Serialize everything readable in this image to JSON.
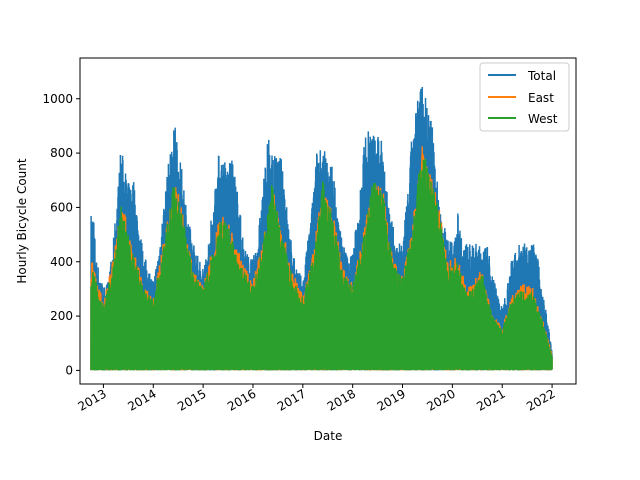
{
  "chart_data": {
    "type": "line",
    "title": "",
    "xlabel": "Date",
    "ylabel": "Hourly Bicycle Count",
    "xlim": [
      2012.53,
      2022.48
    ],
    "ylim": [
      -50,
      1150
    ],
    "x_ticks": [
      2013,
      2014,
      2015,
      2016,
      2017,
      2018,
      2019,
      2020,
      2021,
      2022
    ],
    "x_tick_labels": [
      "2013",
      "2014",
      "2015",
      "2016",
      "2017",
      "2018",
      "2019",
      "2020",
      "2021",
      "2022"
    ],
    "y_ticks": [
      0,
      200,
      400,
      600,
      800,
      1000
    ],
    "y_tick_labels": [
      "0",
      "200",
      "400",
      "600",
      "800",
      "1000"
    ],
    "grid": false,
    "legend": {
      "position": "top-right"
    },
    "series": [
      {
        "name": "Total",
        "color": "#1f77b4",
        "envelope_x": [
          2012.75,
          2012.8,
          2012.85,
          2013.0,
          2013.1,
          2013.2,
          2013.3,
          2013.35,
          2013.4,
          2013.5,
          2013.6,
          2013.7,
          2013.8,
          2013.9,
          2014.0,
          2014.1,
          2014.2,
          2014.3,
          2014.4,
          2014.45,
          2014.5,
          2014.6,
          2014.7,
          2014.8,
          2014.9,
          2015.0,
          2015.1,
          2015.2,
          2015.3,
          2015.4,
          2015.5,
          2015.6,
          2015.7,
          2015.8,
          2015.9,
          2016.0,
          2016.1,
          2016.2,
          2016.3,
          2016.4,
          2016.5,
          2016.6,
          2016.7,
          2016.8,
          2016.9,
          2017.0,
          2017.1,
          2017.2,
          2017.3,
          2017.4,
          2017.5,
          2017.6,
          2017.7,
          2017.8,
          2017.9,
          2018.0,
          2018.1,
          2018.2,
          2018.3,
          2018.4,
          2018.5,
          2018.6,
          2018.7,
          2018.8,
          2018.9,
          2019.0,
          2019.1,
          2019.2,
          2019.3,
          2019.4,
          2019.45,
          2019.5,
          2019.6,
          2019.7,
          2019.8,
          2019.9,
          2020.0,
          2020.1,
          2020.2,
          2020.3,
          2020.4,
          2020.5,
          2020.6,
          2020.7,
          2020.8,
          2020.9,
          2021.0,
          2021.1,
          2021.2,
          2021.3,
          2021.4,
          2021.5,
          2021.6,
          2021.7,
          2021.8,
          2021.9,
          2022.0
        ],
        "envelope_y": [
          580,
          600,
          420,
          310,
          330,
          480,
          700,
          830,
          780,
          690,
          720,
          560,
          440,
          380,
          330,
          440,
          600,
          760,
          880,
          950,
          800,
          720,
          560,
          480,
          420,
          380,
          470,
          620,
          800,
          790,
          760,
          780,
          650,
          500,
          430,
          410,
          500,
          680,
          860,
          800,
          790,
          780,
          560,
          440,
          380,
          330,
          480,
          640,
          850,
          830,
          780,
          760,
          580,
          480,
          420,
          440,
          580,
          800,
          920,
          880,
          860,
          870,
          660,
          540,
          460,
          480,
          640,
          900,
          1000,
          1100,
          1050,
          970,
          900,
          700,
          560,
          500,
          470,
          590,
          490,
          470,
          460,
          470,
          450,
          460,
          370,
          290,
          230,
          320,
          420,
          460,
          480,
          460,
          480,
          430,
          300,
          200,
          70
        ]
      },
      {
        "name": "East",
        "color": "#ff7f0e",
        "envelope_x": [
          2012.75,
          2012.85,
          2013.0,
          2013.2,
          2013.35,
          2013.4,
          2013.6,
          2013.8,
          2014.0,
          2014.2,
          2014.4,
          2014.45,
          2014.6,
          2014.8,
          2015.0,
          2015.2,
          2015.35,
          2015.5,
          2015.8,
          2016.0,
          2016.2,
          2016.4,
          2016.5,
          2016.8,
          2017.0,
          2017.2,
          2017.4,
          2017.6,
          2017.8,
          2018.0,
          2018.2,
          2018.4,
          2018.6,
          2018.8,
          2019.0,
          2019.2,
          2019.4,
          2019.5,
          2019.7,
          2019.9,
          2020.1,
          2020.3,
          2020.6,
          2020.8,
          2021.0,
          2021.2,
          2021.4,
          2021.6,
          2021.8,
          2022.0
        ],
        "envelope_y": [
          420,
          350,
          250,
          420,
          630,
          600,
          460,
          310,
          270,
          470,
          700,
          690,
          580,
          380,
          310,
          460,
          580,
          560,
          390,
          330,
          480,
          680,
          590,
          360,
          280,
          430,
          680,
          590,
          380,
          320,
          490,
          690,
          690,
          420,
          350,
          540,
          830,
          760,
          650,
          400,
          420,
          300,
          380,
          210,
          160,
          280,
          320,
          310,
          200,
          60
        ]
      },
      {
        "name": "West",
        "color": "#2ca02c",
        "envelope_x": [
          2012.75,
          2012.85,
          2013.0,
          2013.2,
          2013.35,
          2013.4,
          2013.6,
          2013.8,
          2014.0,
          2014.2,
          2014.4,
          2014.45,
          2014.6,
          2014.8,
          2015.0,
          2015.2,
          2015.35,
          2015.5,
          2015.8,
          2016.0,
          2016.2,
          2016.4,
          2016.5,
          2016.8,
          2017.0,
          2017.2,
          2017.4,
          2017.6,
          2017.8,
          2018.0,
          2018.2,
          2018.4,
          2018.6,
          2018.8,
          2019.0,
          2019.2,
          2019.4,
          2019.5,
          2019.7,
          2019.9,
          2020.1,
          2020.3,
          2020.6,
          2020.8,
          2021.0,
          2021.2,
          2021.4,
          2021.6,
          2021.8,
          2022.0
        ],
        "envelope_y": [
          400,
          330,
          240,
          400,
          610,
          580,
          440,
          300,
          260,
          450,
          680,
          670,
          560,
          360,
          300,
          440,
          560,
          540,
          370,
          320,
          460,
          720,
          570,
          340,
          270,
          410,
          700,
          570,
          360,
          310,
          470,
          700,
          670,
          400,
          340,
          520,
          850,
          740,
          630,
          380,
          400,
          280,
          360,
          200,
          150,
          270,
          300,
          290,
          190,
          50
        ]
      }
    ]
  }
}
